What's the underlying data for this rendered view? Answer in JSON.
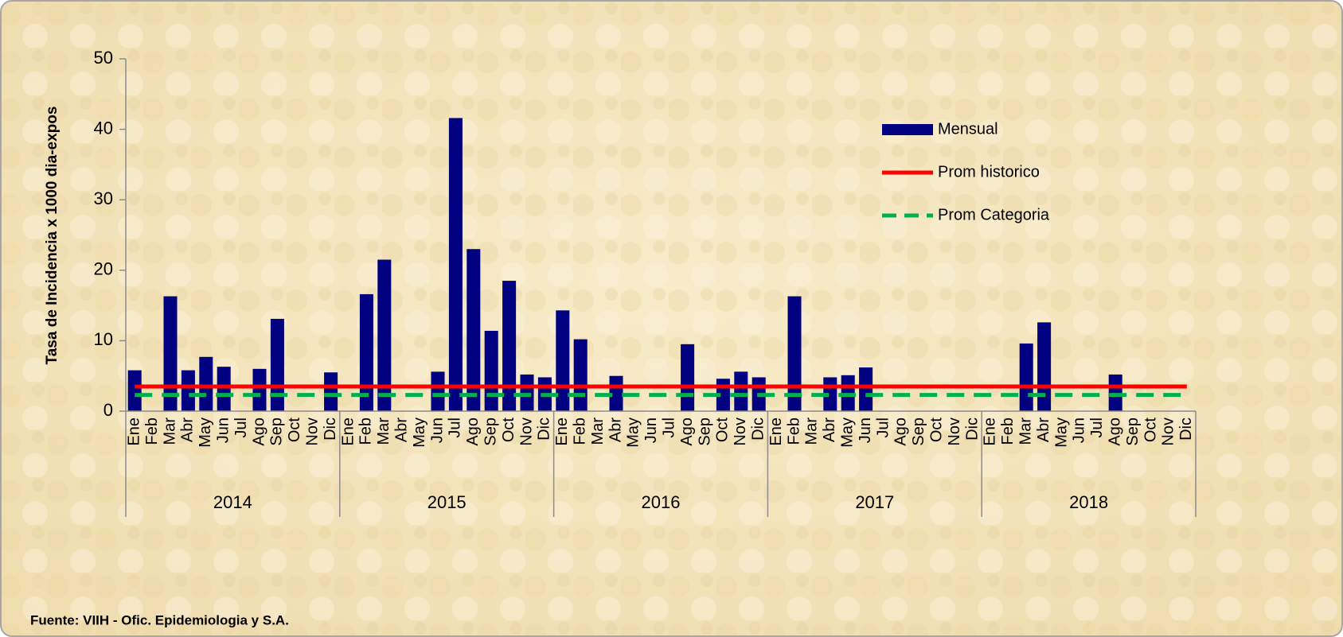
{
  "chart_data": {
    "type": "bar",
    "y_label": "Tasa de Incidencia x 1000 dia-expos",
    "source": "Fuente: VIIH - Ofic. Epidemiologia y S.A.",
    "categories": [
      "Ene",
      "Feb",
      "Mar",
      "Abr",
      "May",
      "Jun",
      "Jul",
      "Ago",
      "Sep",
      "Oct",
      "Nov",
      "Dic",
      "Ene",
      "Feb",
      "Mar",
      "Abr",
      "May",
      "Jun",
      "Jul",
      "Ago",
      "Sep",
      "Oct",
      "Nov",
      "Dic",
      "Ene",
      "Feb",
      "Mar",
      "Abr",
      "May",
      "Jun",
      "Jul",
      "Ago",
      "Sep",
      "Oct",
      "Nov",
      "Dic",
      "Ene",
      "Feb",
      "Mar",
      "Abr",
      "May",
      "Jun",
      "Jul",
      "Ago",
      "Sep",
      "Oct",
      "Nov",
      "Dic",
      "Ene",
      "Feb",
      "Mar",
      "Abr",
      "May",
      "Jun",
      "Jul",
      "Ago",
      "Sep",
      "Oct",
      "Nov",
      "Dic"
    ],
    "groups": [
      "2014",
      "2015",
      "2016",
      "2017",
      "2018"
    ],
    "series": [
      {
        "name": "Mensual",
        "type": "bar",
        "color": "#000080",
        "values": [
          5.8,
          0,
          16.3,
          5.8,
          7.7,
          6.3,
          0,
          6.0,
          13.1,
          0,
          0,
          5.5,
          0,
          16.6,
          21.5,
          0,
          0,
          5.6,
          41.6,
          23.0,
          11.4,
          18.5,
          5.2,
          4.8,
          14.3,
          10.2,
          0,
          5.0,
          0,
          0,
          0,
          9.5,
          0,
          4.6,
          5.6,
          4.8,
          0,
          16.3,
          0,
          4.8,
          5.1,
          6.2,
          0,
          0,
          0,
          0,
          0,
          0,
          0,
          0,
          9.6,
          12.6,
          0,
          0,
          0,
          5.2,
          0,
          0,
          0,
          0
        ]
      },
      {
        "name": "Prom historico",
        "type": "line",
        "color": "#ff0000",
        "dashed": false,
        "values": [
          3.5,
          3.5,
          3.5,
          3.5,
          3.5,
          3.5,
          3.5,
          3.5,
          3.5,
          3.5,
          3.5,
          3.5,
          3.5,
          3.5,
          3.5,
          3.5,
          3.5,
          3.5,
          3.5,
          3.5,
          3.5,
          3.5,
          3.5,
          3.5,
          3.5,
          3.5,
          3.5,
          3.5,
          3.5,
          3.5,
          3.5,
          3.5,
          3.5,
          3.5,
          3.5,
          3.5,
          3.5,
          3.5,
          3.5,
          3.5,
          3.5,
          3.5,
          3.5,
          3.5,
          3.5,
          3.5,
          3.5,
          3.5,
          3.5,
          3.5,
          3.5,
          3.5,
          3.5,
          3.5,
          3.5,
          3.5,
          3.5,
          3.5,
          3.5,
          3.5
        ]
      },
      {
        "name": "Prom Categoria",
        "type": "line",
        "color": "#00b050",
        "dashed": true,
        "values": [
          2.3,
          2.3,
          2.3,
          2.3,
          2.3,
          2.3,
          2.3,
          2.3,
          2.3,
          2.3,
          2.3,
          2.3,
          2.3,
          2.3,
          2.3,
          2.3,
          2.3,
          2.3,
          2.3,
          2.3,
          2.3,
          2.3,
          2.3,
          2.3,
          2.3,
          2.3,
          2.3,
          2.3,
          2.3,
          2.3,
          2.3,
          2.3,
          2.3,
          2.3,
          2.3,
          2.3,
          2.3,
          2.3,
          2.3,
          2.3,
          2.3,
          2.3,
          2.3,
          2.3,
          2.3,
          2.3,
          2.3,
          2.3,
          2.3,
          2.3,
          2.3,
          2.3,
          2.3,
          2.3,
          2.3,
          2.3,
          2.3,
          2.3,
          2.3,
          2.3
        ]
      }
    ],
    "ylim": [
      0,
      50
    ],
    "yticks": [
      0,
      10,
      20,
      30,
      40,
      50
    ],
    "grid": false,
    "legend": "upper right"
  }
}
